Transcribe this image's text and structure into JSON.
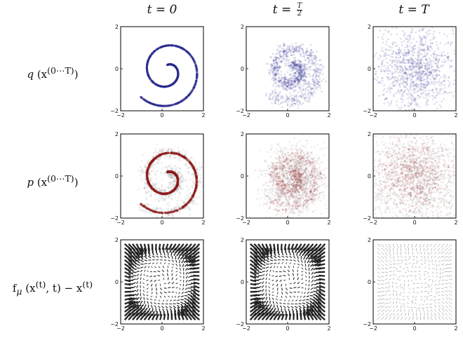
{
  "column_titles": [
    {
      "lhs": "t",
      "rhs": "0"
    },
    {
      "lhs": "t",
      "num": "T",
      "den": "2"
    },
    {
      "lhs": "t",
      "rhs": "T"
    }
  ],
  "row_labels": [
    {
      "fn": "q",
      "arg": "(x",
      "sup": "(0⋯T)",
      "close": ")"
    },
    {
      "fn": "p",
      "arg": "(x",
      "sup": "(0⋯T)",
      "close": ")"
    },
    {
      "fn": "f",
      "sub": "μ",
      "arg": "(x",
      "sup": "(t)",
      "mid": ", t) − x",
      "sup2": "(t)"
    }
  ],
  "colors": {
    "q_points": "#2b2b8f",
    "p_points": "#8b1a1a",
    "p_halo": "#9a9a9a",
    "arrows": "#1a1a1a",
    "frame": "#000000"
  },
  "chart_data": [
    {
      "row": "q",
      "column": "t = 0",
      "type": "scatter",
      "description": "two-arm spiral",
      "xlim": [
        -2,
        2
      ],
      "ylim": [
        -2,
        2
      ],
      "xticks": [
        -2,
        0,
        2
      ],
      "yticks": [
        -2,
        0,
        2
      ],
      "tick_labels": [
        "−2",
        "0",
        "2"
      ],
      "noise": 0.0
    },
    {
      "row": "q",
      "column": "t = T/2",
      "type": "scatter",
      "description": "spiral with medium noise",
      "xlim": [
        -2,
        2
      ],
      "ylim": [
        -2,
        2
      ],
      "xticks": [
        -2,
        0,
        2
      ],
      "yticks": [
        -2,
        0,
        2
      ],
      "tick_labels": [
        "−2",
        "0",
        "2"
      ],
      "noise": 0.3
    },
    {
      "row": "q",
      "column": "t = T",
      "type": "scatter",
      "description": "near-isotropic noise",
      "xlim": [
        -2,
        2
      ],
      "ylim": [
        -2,
        2
      ],
      "xticks": [
        -2,
        0,
        2
      ],
      "yticks": [
        -2,
        0,
        2
      ],
      "tick_labels": [
        "−2",
        "0",
        "2"
      ],
      "noise": 1.0
    },
    {
      "row": "p",
      "column": "t = 0",
      "type": "scatter",
      "description": "reconstructed spiral",
      "xlim": [
        -2,
        2
      ],
      "ylim": [
        -2,
        2
      ],
      "xticks": [
        -2,
        0,
        2
      ],
      "yticks": [
        -2,
        0,
        2
      ],
      "tick_labels": [
        "−2",
        "0",
        "2"
      ],
      "noise": 0.02
    },
    {
      "row": "p",
      "column": "t = T/2",
      "type": "scatter",
      "description": "spiral with medium noise",
      "xlim": [
        -2,
        2
      ],
      "ylim": [
        -2,
        2
      ],
      "xticks": [
        -2,
        0,
        2
      ],
      "yticks": [
        -2,
        0,
        2
      ],
      "tick_labels": [
        "−2",
        "0",
        "2"
      ],
      "noise": 0.35
    },
    {
      "row": "p",
      "column": "t = T",
      "type": "scatter",
      "description": "near-isotropic noise",
      "xlim": [
        -2,
        2
      ],
      "ylim": [
        -2,
        2
      ],
      "xticks": [
        -2,
        0,
        2
      ],
      "yticks": [
        -2,
        0,
        2
      ],
      "tick_labels": [
        "−2",
        "0",
        "2"
      ],
      "noise": 0.9
    },
    {
      "row": "drift",
      "column": "t = 0",
      "type": "quiver",
      "description": "strong drift toward spiral",
      "xlim": [
        -2,
        2
      ],
      "ylim": [
        -2,
        2
      ],
      "xticks": [
        -2,
        0,
        2
      ],
      "yticks": [
        -2,
        0,
        2
      ],
      "tick_labels": [
        "−2",
        "0",
        "2"
      ],
      "grid": 20,
      "strength": 1.0
    },
    {
      "row": "drift",
      "column": "t = T/2",
      "type": "quiver",
      "description": "strong drift toward spiral",
      "xlim": [
        -2,
        2
      ],
      "ylim": [
        -2,
        2
      ],
      "xticks": [
        -2,
        0,
        2
      ],
      "yticks": [
        -2,
        0,
        2
      ],
      "tick_labels": [
        "−2",
        "0",
        "2"
      ],
      "grid": 20,
      "strength": 1.0
    },
    {
      "row": "drift",
      "column": "t = T",
      "type": "quiver",
      "description": "weak drift field",
      "xlim": [
        -2,
        2
      ],
      "ylim": [
        -2,
        2
      ],
      "xticks": [
        -2,
        0,
        2
      ],
      "yticks": [
        -2,
        0,
        2
      ],
      "tick_labels": [
        "−2",
        "0",
        "2"
      ],
      "grid": 20,
      "strength": 0.18
    }
  ]
}
